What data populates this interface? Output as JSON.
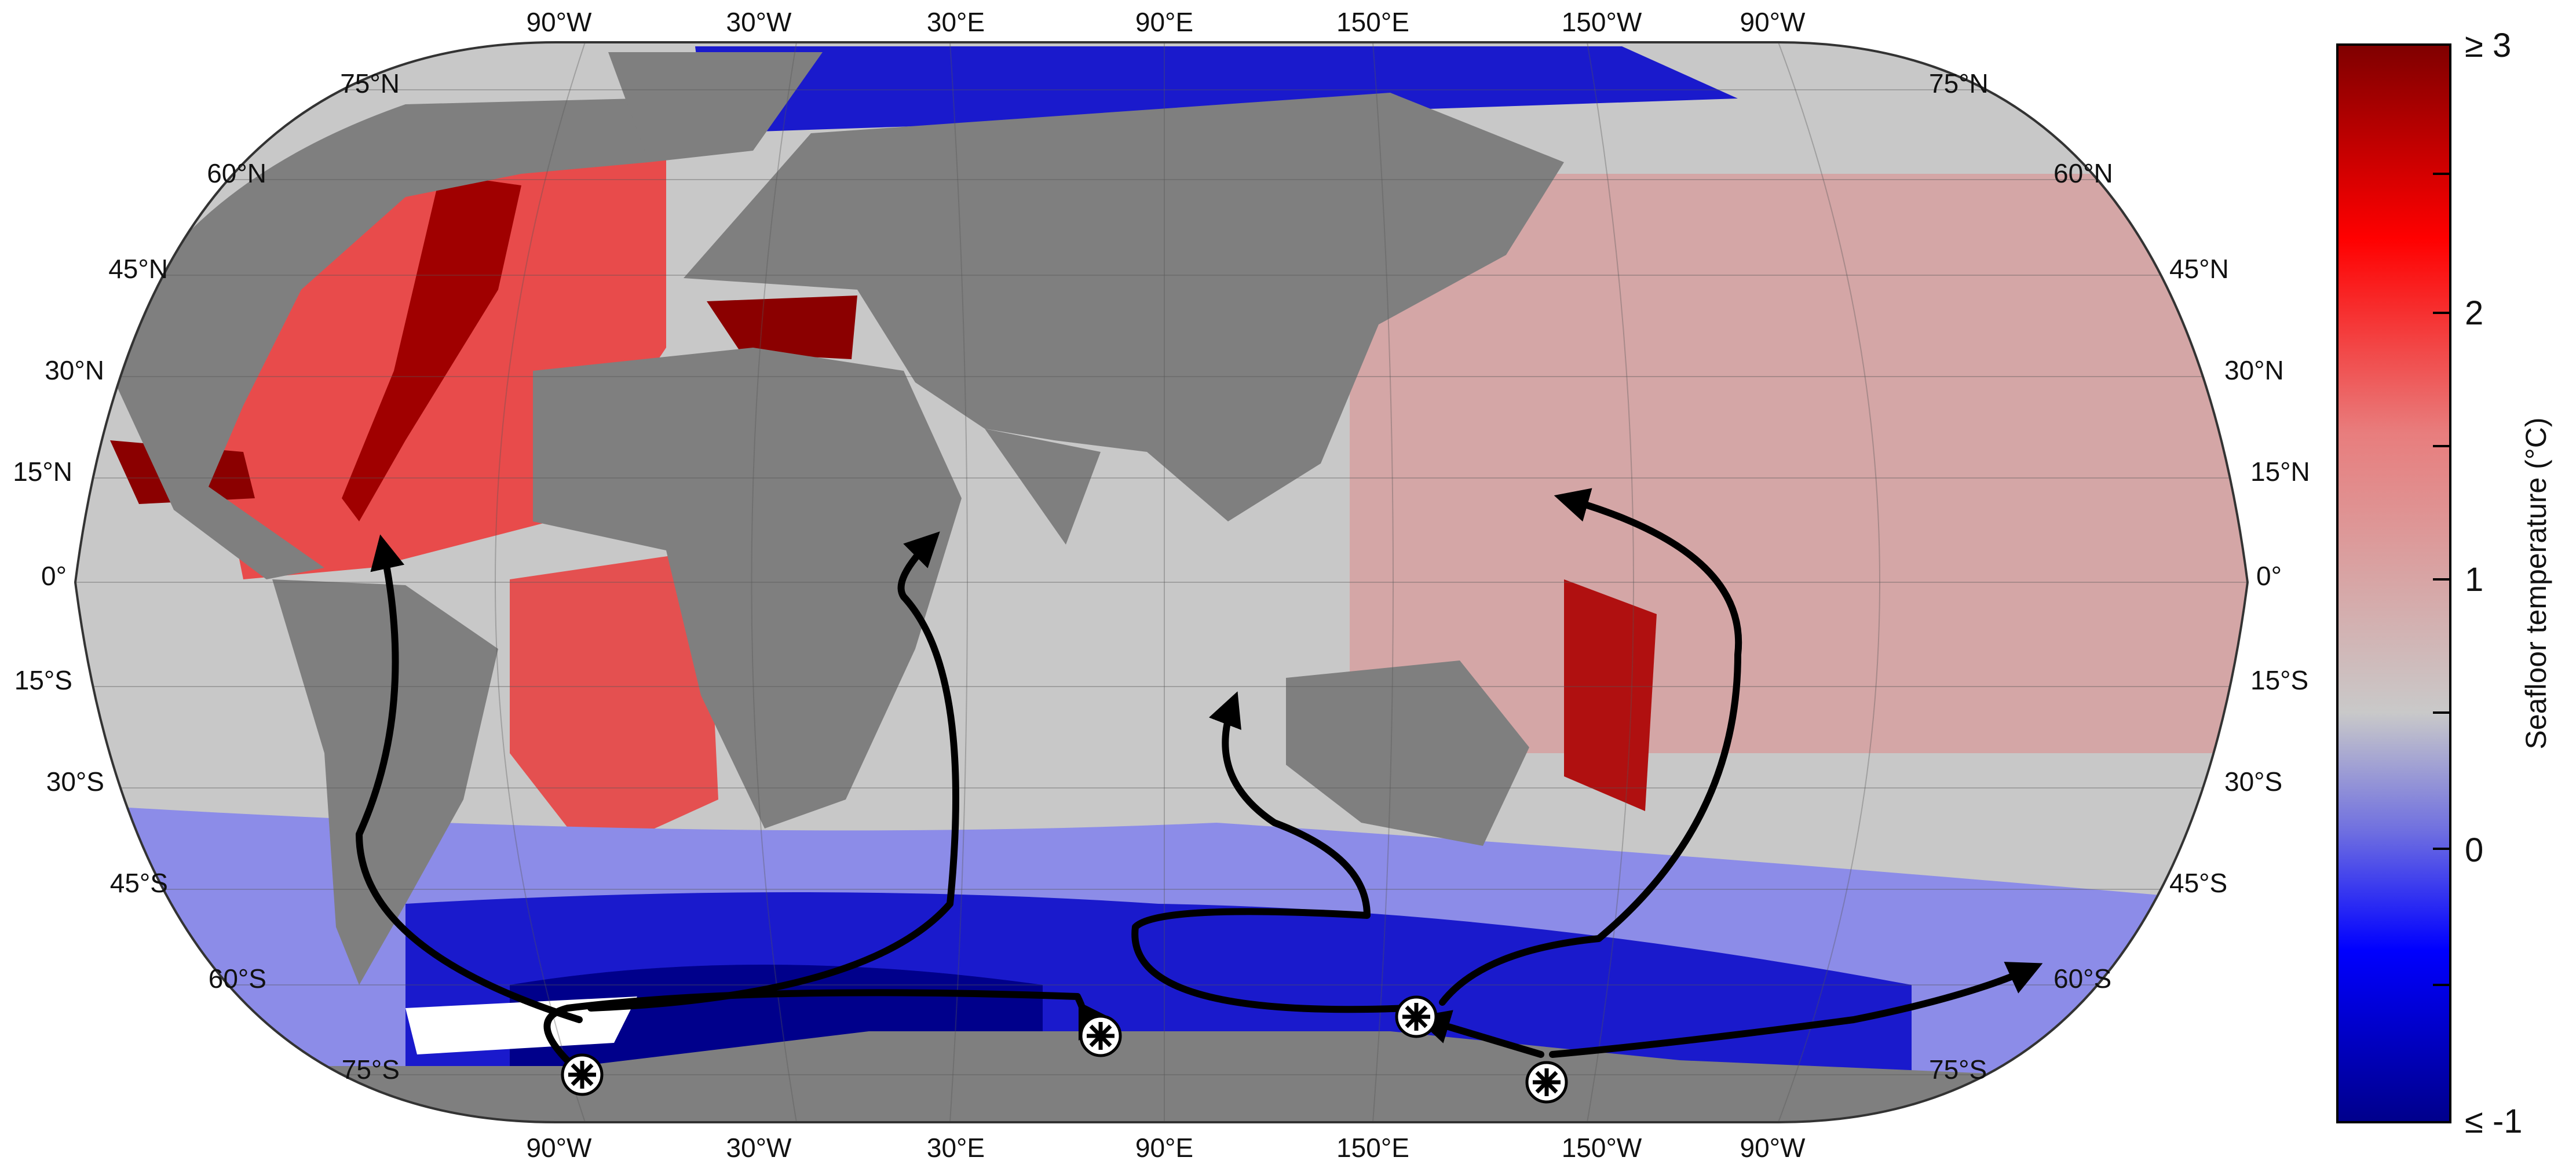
{
  "map": {
    "top_lon_labels": [
      "90°W",
      "30°W",
      "30°E",
      "90°E",
      "150°E",
      "150°W",
      "90°W"
    ],
    "bottom_lon_labels": [
      "90°W",
      "30°W",
      "30°E",
      "90°E",
      "150°E",
      "150°W",
      "90°W"
    ],
    "lat_labels": [
      "75°N",
      "60°N",
      "45°N",
      "30°N",
      "15°N",
      "0°",
      "15°S",
      "30°S",
      "45°S",
      "60°S",
      "75°S"
    ],
    "colors": {
      "land": "#7f7f7f",
      "ice_shelf": "#ffffff",
      "ocean_neutral": "#c8c8c8",
      "warm": "#e84b4b",
      "hot": "#8b0000",
      "cold": "#1a1acc",
      "coldest": "#00008b"
    },
    "icons": [
      "arrow-icon",
      "dense-water-source-icon"
    ]
  },
  "colorbar": {
    "title": "Seafloor temperature (°C)",
    "tick_labels": [
      "≥ 3",
      "2",
      "1",
      "0",
      "≤ -1"
    ],
    "max_value": 3,
    "min_value": -1,
    "colors": [
      "#7f0000",
      "#ff0000",
      "#e87d7d",
      "#c9c9c9",
      "#6f6fe0",
      "#0000ff",
      "#00008b"
    ]
  }
}
